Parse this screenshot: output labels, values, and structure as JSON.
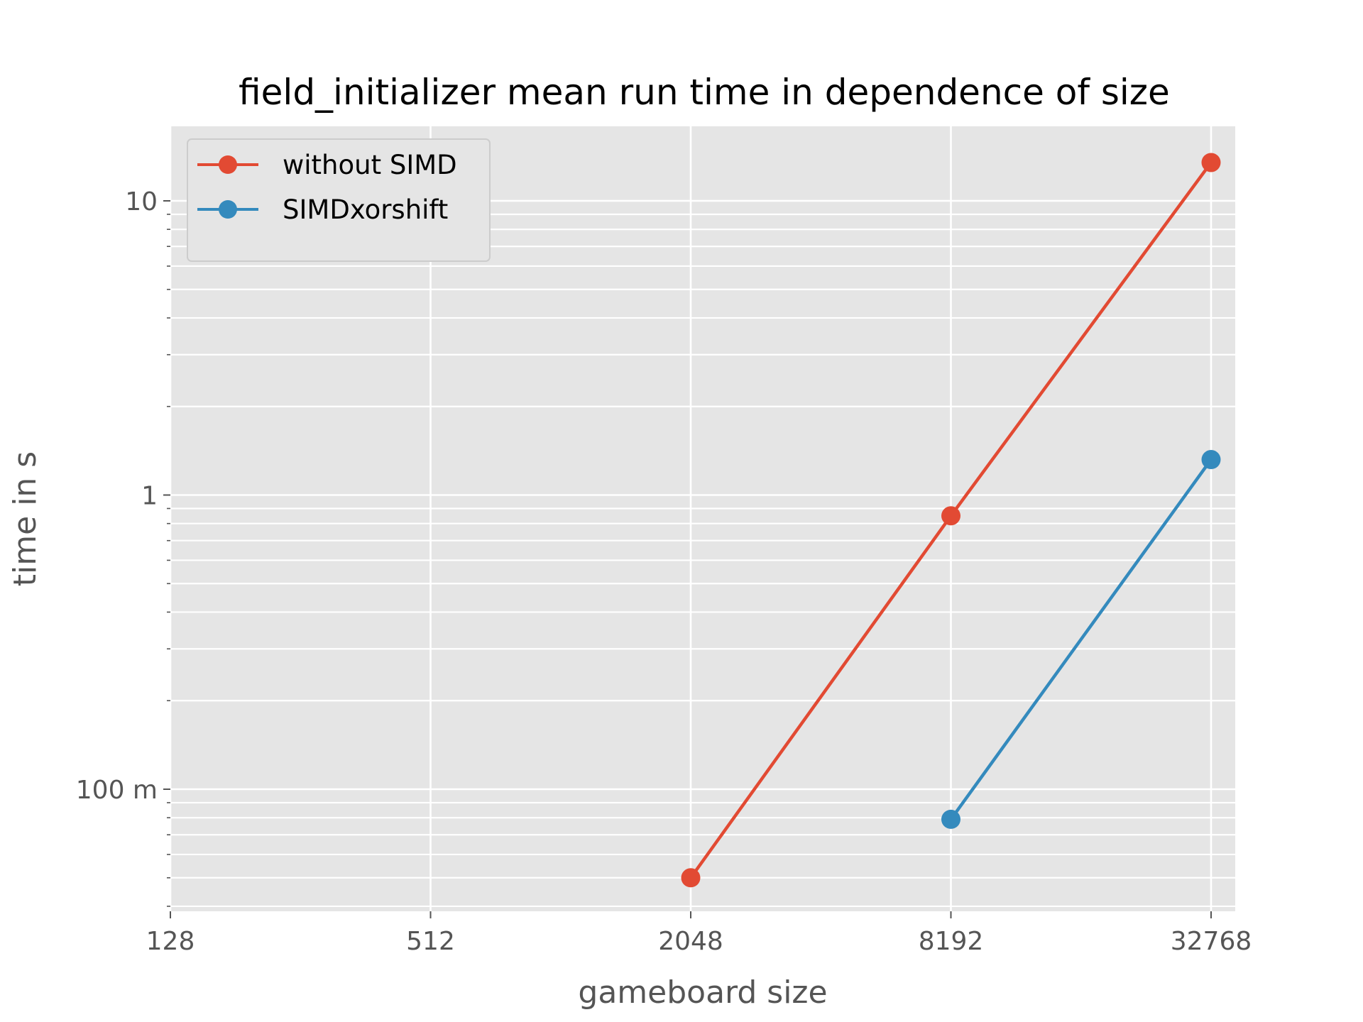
{
  "chart_data": {
    "type": "line",
    "title": "field_initializer mean run time in dependence of size",
    "xlabel": "gameboard size",
    "ylabel": "time in s",
    "x_scale": "log2",
    "y_scale": "log10",
    "x_ticks": [
      128,
      512,
      2048,
      8192,
      32768
    ],
    "x_tick_labels": [
      "128",
      "512",
      "2048",
      "8192",
      "32768"
    ],
    "xlim": [
      128,
      32768
    ],
    "y_ticks": [
      0.1,
      1,
      10
    ],
    "y_tick_labels": [
      "100 m",
      "1",
      "10"
    ],
    "ylim": [
      0.04,
      18
    ],
    "grid": true,
    "legend_position": "upper left",
    "series": [
      {
        "name": "without SIMD",
        "color": "#E24A33",
        "marker": "circle",
        "x": [
          2048,
          8192,
          32768
        ],
        "y": [
          0.05,
          0.85,
          13.5
        ]
      },
      {
        "name": "SIMDxorshift",
        "color": "#348ABD",
        "marker": "circle",
        "x": [
          8192,
          32768
        ],
        "y": [
          0.079,
          1.32
        ]
      }
    ]
  }
}
